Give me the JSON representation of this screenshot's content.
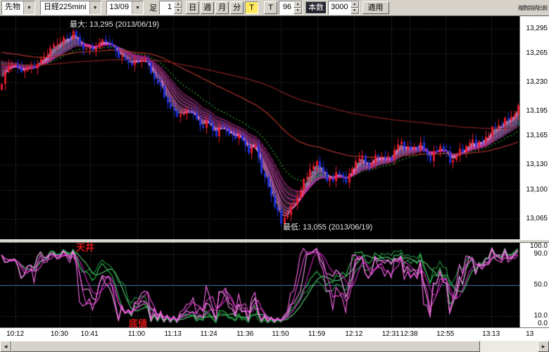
{
  "toolbar": {
    "instrument_type": "先物",
    "symbol": "日経225mini",
    "contract": "13/09",
    "interval_label": "足",
    "interval_value": "1",
    "period_buttons": [
      "日",
      "週",
      "月",
      "分"
    ],
    "tick_button": "T",
    "t_button": "T",
    "bars_value": "96",
    "bars_button": "本数",
    "total_value": "3000",
    "apply_button": "適用",
    "corner_text": "複数銘柄比較"
  },
  "icons": {
    "dropdown": "▼",
    "spin_up": "▲",
    "spin_down": "▼",
    "scroll_left": "◀",
    "scroll_right": "▶"
  },
  "main_chart": {
    "max_annotation": "最大: 13,295 (2013/06/19)",
    "min_annotation": "最低: 13,055 (2013/06/19)",
    "price_labels": [
      "13,295",
      "13,265",
      "13,230",
      "13,195",
      "13,165",
      "13,130",
      "13,100",
      "13,065"
    ],
    "price_values": [
      13295,
      13265,
      13230,
      13195,
      13165,
      13130,
      13100,
      13065
    ],
    "price_top": 13310,
    "price_bottom": 13040
  },
  "sub_chart": {
    "ceiling_label": "天井",
    "floor_label": "底値",
    "axis_labels": [
      "100.0",
      "90.0",
      "50.0",
      "10.0",
      "0.0"
    ],
    "axis_values": [
      100,
      90,
      50,
      10,
      0
    ],
    "mid_level": 50,
    "upper_level": 90,
    "lower_level": 10
  },
  "time_axis": {
    "labels": [
      "10:12",
      "10:30",
      "10:41",
      "11:00",
      "11:13",
      "11:24",
      "11:36",
      "11:50",
      "11:59",
      "12:12",
      "12:31",
      "12:38",
      "12:55",
      "13:13",
      "13"
    ],
    "positions": [
      0.03,
      0.115,
      0.173,
      0.264,
      0.334,
      0.403,
      0.473,
      0.541,
      0.611,
      0.682,
      0.753,
      0.788,
      0.858,
      0.946,
      1.03
    ]
  },
  "chart_data": {
    "type": "candlestick",
    "sub_type": "stochastic_ribbon",
    "bars": 160,
    "peak": {
      "t": 0.14,
      "price": 13295,
      "date": "2013/06/19"
    },
    "trough": {
      "t": 0.54,
      "price": 13055,
      "date": "2013/06/19"
    },
    "price_anchors": [
      [
        0.0,
        13228
      ],
      [
        0.015,
        13252
      ],
      [
        0.035,
        13242
      ],
      [
        0.055,
        13250
      ],
      [
        0.075,
        13258
      ],
      [
        0.095,
        13268
      ],
      [
        0.115,
        13278
      ],
      [
        0.14,
        13290
      ],
      [
        0.16,
        13272
      ],
      [
        0.18,
        13268
      ],
      [
        0.2,
        13280
      ],
      [
        0.22,
        13270
      ],
      [
        0.24,
        13258
      ],
      [
        0.26,
        13250
      ],
      [
        0.275,
        13256
      ],
      [
        0.29,
        13240
      ],
      [
        0.31,
        13224
      ],
      [
        0.33,
        13196
      ],
      [
        0.35,
        13186
      ],
      [
        0.365,
        13194
      ],
      [
        0.385,
        13178
      ],
      [
        0.4,
        13186
      ],
      [
        0.415,
        13168
      ],
      [
        0.43,
        13176
      ],
      [
        0.445,
        13158
      ],
      [
        0.46,
        13166
      ],
      [
        0.475,
        13150
      ],
      [
        0.49,
        13156
      ],
      [
        0.505,
        13120
      ],
      [
        0.52,
        13092
      ],
      [
        0.54,
        13060
      ],
      [
        0.555,
        13075
      ],
      [
        0.575,
        13098
      ],
      [
        0.595,
        13122
      ],
      [
        0.615,
        13130
      ],
      [
        0.63,
        13108
      ],
      [
        0.65,
        13124
      ],
      [
        0.67,
        13112
      ],
      [
        0.69,
        13138
      ],
      [
        0.71,
        13128
      ],
      [
        0.73,
        13146
      ],
      [
        0.75,
        13138
      ],
      [
        0.77,
        13154
      ],
      [
        0.79,
        13146
      ],
      [
        0.81,
        13158
      ],
      [
        0.83,
        13140
      ],
      [
        0.85,
        13152
      ],
      [
        0.87,
        13130
      ],
      [
        0.89,
        13150
      ],
      [
        0.91,
        13162
      ],
      [
        0.93,
        13155
      ],
      [
        0.95,
        13170
      ],
      [
        0.97,
        13182
      ],
      [
        1.0,
        13200
      ]
    ],
    "ribbon_periods": [
      3,
      4,
      5,
      6,
      8,
      10,
      12,
      15
    ],
    "ribbon_seed": 13246,
    "green_period": 22,
    "green_seed": 13256,
    "long_periods": [
      55,
      160
    ],
    "long_seeds": [
      13268,
      13252
    ],
    "stoch_pink_periods": [
      9,
      14
    ],
    "stoch_green_periods": [
      26,
      38
    ]
  },
  "colors": {
    "panel_bg": "#000000",
    "axis_bg": "#ffffff",
    "toolbar_bg": "#d6d2ca",
    "up": "#e8192c",
    "down": "#1e2fd8",
    "ribbon": [
      "#ffb0f2",
      "#ff98ea",
      "#ff80e2",
      "#f468d6",
      "#e852c8",
      "#dc3eba",
      "#d02cac",
      "#c41c9e"
    ],
    "ribbon_fill_up": "rgba(120,235,255,0.30)",
    "ribbon_fill_down": "rgba(255,140,230,0.14)",
    "green_ma": "#2da02d",
    "long_ma1": "#a03028",
    "long_ma2": "#7c1f1f",
    "grid": "#4a4a4a",
    "hgrid": "#3c3c3c",
    "mid_line": "#4d7fb0",
    "stoch_pink": [
      "#ff6cee",
      "#ec46da",
      "#ff9cf4",
      "#d224c4"
    ],
    "stoch_green": [
      "#2fbf55",
      "#5cd87f",
      "#1f9440"
    ],
    "annotation_white": "#e8e8e8",
    "annotation_red": "#e01818"
  }
}
